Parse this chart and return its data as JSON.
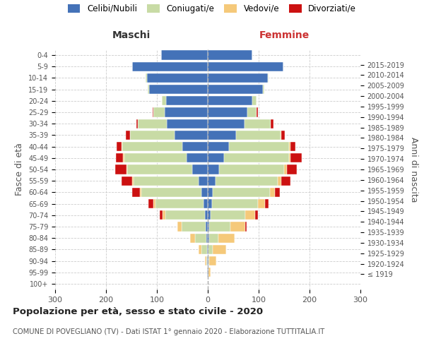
{
  "age_groups": [
    "100+",
    "95-99",
    "90-94",
    "85-89",
    "80-84",
    "75-79",
    "70-74",
    "65-69",
    "60-64",
    "55-59",
    "50-54",
    "45-49",
    "40-44",
    "35-39",
    "30-34",
    "25-29",
    "20-24",
    "15-19",
    "10-14",
    "5-9",
    "0-4"
  ],
  "birth_years": [
    "≤ 1919",
    "1920-1924",
    "1925-1929",
    "1930-1934",
    "1935-1939",
    "1940-1944",
    "1945-1949",
    "1950-1954",
    "1955-1959",
    "1960-1964",
    "1965-1969",
    "1970-1974",
    "1975-1979",
    "1980-1984",
    "1985-1989",
    "1990-1994",
    "1995-1999",
    "2000-2004",
    "2005-2009",
    "2010-2014",
    "2015-2019"
  ],
  "maschi": {
    "celibi": [
      0,
      1,
      1,
      2,
      3,
      4,
      5,
      8,
      12,
      18,
      30,
      42,
      50,
      65,
      80,
      85,
      82,
      115,
      120,
      148,
      92
    ],
    "coniugati": [
      0,
      1,
      2,
      10,
      22,
      48,
      78,
      95,
      118,
      128,
      128,
      122,
      118,
      88,
      58,
      22,
      8,
      3,
      2,
      0,
      0
    ],
    "vedovi": [
      0,
      0,
      2,
      6,
      10,
      8,
      6,
      4,
      4,
      3,
      2,
      2,
      1,
      0,
      0,
      0,
      0,
      0,
      0,
      0,
      0
    ],
    "divorziati": [
      0,
      0,
      0,
      0,
      0,
      0,
      6,
      10,
      14,
      20,
      22,
      14,
      10,
      8,
      2,
      1,
      0,
      0,
      0,
      0,
      0
    ]
  },
  "femmine": {
    "nubili": [
      0,
      1,
      1,
      2,
      3,
      3,
      5,
      8,
      10,
      15,
      22,
      32,
      42,
      55,
      72,
      78,
      88,
      108,
      118,
      148,
      88
    ],
    "coniugate": [
      0,
      1,
      2,
      8,
      18,
      42,
      68,
      90,
      112,
      122,
      128,
      128,
      118,
      88,
      52,
      18,
      8,
      3,
      2,
      0,
      0
    ],
    "vedove": [
      0,
      4,
      14,
      26,
      32,
      28,
      20,
      14,
      10,
      8,
      5,
      3,
      2,
      1,
      0,
      0,
      0,
      0,
      0,
      0,
      0
    ],
    "divorziate": [
      0,
      0,
      0,
      0,
      0,
      4,
      5,
      8,
      10,
      18,
      20,
      22,
      10,
      8,
      5,
      2,
      0,
      0,
      0,
      0,
      0
    ]
  },
  "colors": {
    "celibi": "#4472b8",
    "coniugati": "#c8dba5",
    "vedovi": "#f5c97a",
    "divorziati": "#cc1111"
  },
  "xlim": 300,
  "title": "Popolazione per età, sesso e stato civile - 2020",
  "subtitle": "COMUNE DI POVEGLIANO (TV) - Dati ISTAT 1° gennaio 2020 - Elaborazione TUTTITALIA.IT",
  "ylabel_left": "Fasce di età",
  "ylabel_right": "Anni di nascita",
  "xlabel_maschi": "Maschi",
  "xlabel_femmine": "Femmine",
  "legend_labels": [
    "Celibi/Nubili",
    "Coniugati/e",
    "Vedovi/e",
    "Divorziati/e"
  ]
}
